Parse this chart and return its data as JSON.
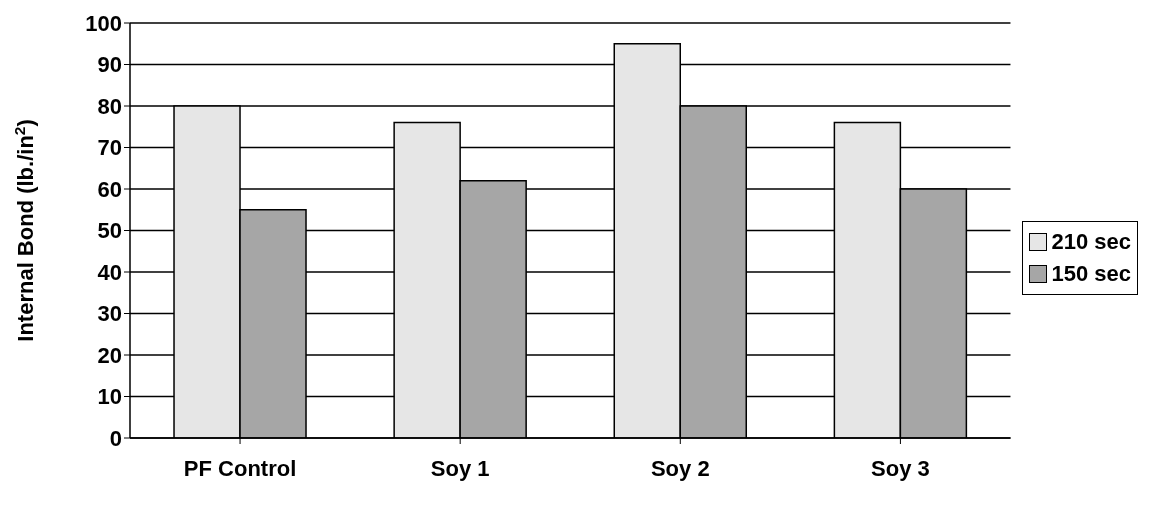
{
  "chart_data": {
    "type": "bar",
    "ylabel": "Internal Bond (lb./in$^{2}$)",
    "categories": [
      "PF Control",
      "Soy 1",
      "Soy 2",
      "Soy 3"
    ],
    "series": [
      {
        "name": "210 sec",
        "color": "#e6e6e6",
        "values": [
          80,
          76,
          95,
          76
        ]
      },
      {
        "name": "150 sec",
        "color": "#a6a6a6",
        "values": [
          55,
          62,
          80,
          60
        ]
      }
    ],
    "ylim": [
      0,
      100
    ],
    "yticks": [
      0,
      10,
      20,
      30,
      40,
      50,
      60,
      70,
      80,
      90,
      100
    ],
    "grid": "y",
    "legend": "right"
  }
}
